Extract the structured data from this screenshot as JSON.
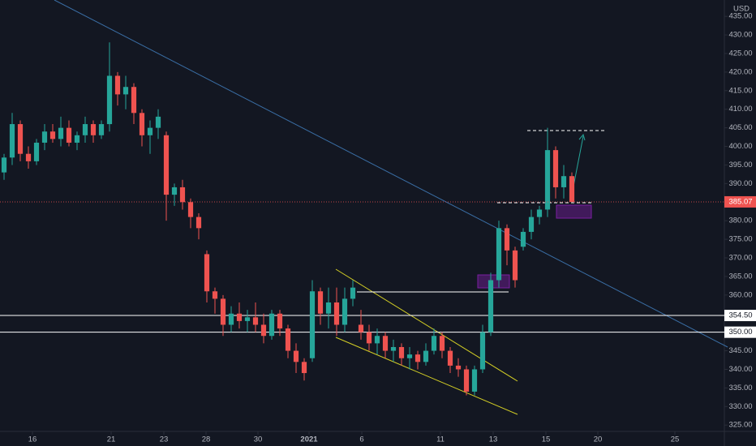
{
  "chart_data": {
    "type": "candlestick",
    "currency": "USD",
    "x": [
      0,
      1,
      2,
      3,
      4,
      5,
      6,
      7,
      8,
      9,
      10,
      11,
      12,
      13,
      14,
      15,
      16,
      17,
      18,
      19,
      20,
      21,
      22,
      23,
      24,
      25,
      26,
      27,
      28,
      29,
      30,
      31,
      32,
      33,
      34,
      35,
      36,
      37,
      38,
      39,
      40,
      41,
      42,
      43,
      44,
      45,
      46,
      47,
      48,
      49,
      50,
      51,
      52,
      53,
      54,
      55,
      56,
      57,
      58,
      59,
      60,
      61,
      62,
      63,
      64,
      65,
      66,
      67,
      68,
      69,
      70
    ],
    "open": [
      393,
      397,
      406,
      398,
      396,
      401,
      404,
      402,
      405,
      401,
      403,
      406,
      403,
      406,
      419,
      414,
      416,
      409,
      403,
      405,
      403,
      387,
      389,
      385,
      381,
      371,
      361,
      359,
      352,
      355,
      353,
      354,
      352,
      349,
      355,
      351,
      345,
      342,
      343,
      361,
      355,
      358,
      352,
      359,
      352,
      350,
      347,
      349,
      345,
      346,
      343,
      344,
      342,
      345,
      349,
      345,
      341,
      340,
      334,
      340,
      350,
      364,
      378,
      372,
      373,
      377,
      381,
      383,
      399,
      389,
      392
    ],
    "high": [
      398,
      409,
      407,
      400,
      402,
      406,
      406,
      408,
      407,
      404,
      408,
      407,
      407,
      428,
      420,
      419,
      417,
      410,
      407,
      410,
      404,
      390,
      391,
      386,
      382,
      372,
      362,
      360,
      357,
      358,
      356,
      358,
      355,
      356,
      356,
      352,
      347,
      343,
      364,
      362,
      362,
      362,
      362,
      364,
      356,
      352,
      351,
      350,
      348,
      347,
      346,
      345,
      347,
      351,
      350,
      346,
      343,
      341,
      341,
      352,
      366,
      380,
      379,
      373,
      378,
      383,
      384,
      405,
      400,
      395,
      393
    ],
    "low": [
      391,
      395,
      396,
      394,
      395,
      399,
      401,
      400,
      400,
      399,
      401,
      401,
      402,
      404,
      411,
      410,
      406,
      400,
      398,
      402,
      380,
      384,
      383,
      378,
      375,
      358,
      355,
      349,
      350,
      351,
      350,
      350,
      347,
      348,
      349,
      343,
      339,
      337,
      342,
      352,
      351,
      349,
      350,
      357,
      348,
      345,
      344,
      343,
      342,
      341,
      340,
      340,
      341,
      344,
      343,
      339,
      338,
      333,
      333,
      339,
      349,
      362,
      368,
      362,
      372,
      375,
      379,
      381,
      386,
      386,
      385
    ],
    "close": [
      397,
      406,
      398,
      396,
      401,
      404,
      402,
      405,
      401,
      403,
      406,
      403,
      406,
      419,
      414,
      416,
      409,
      403,
      405,
      408,
      387,
      389,
      385,
      381,
      378,
      361,
      359,
      352,
      355,
      353,
      354,
      352,
      349,
      355,
      351,
      345,
      342,
      339,
      361,
      355,
      358,
      352,
      359,
      362,
      350,
      347,
      349,
      345,
      346,
      343,
      344,
      342,
      345,
      349,
      345,
      341,
      340,
      334,
      340,
      350,
      364,
      378,
      372,
      364,
      377,
      381,
      383,
      399,
      389,
      392,
      385.07
    ],
    "up_color": "#26a69a",
    "down_color": "#ef5350",
    "xlim": [
      -0.5,
      88.8
    ],
    "xticks": [
      {
        "value": 3.5,
        "label": "16"
      },
      {
        "value": 13.2,
        "label": "21"
      },
      {
        "value": 19.7,
        "label": "23"
      },
      {
        "value": 24.9,
        "label": "28"
      },
      {
        "value": 31.3,
        "label": "30"
      },
      {
        "value": 37.6,
        "label": "2021"
      },
      {
        "value": 44.1,
        "label": "6"
      },
      {
        "value": 53.8,
        "label": "11"
      },
      {
        "value": 60.3,
        "label": "13"
      },
      {
        "value": 66.8,
        "label": "15"
      },
      {
        "value": 73.2,
        "label": "20"
      },
      {
        "value": 82.7,
        "label": "25"
      }
    ],
    "ylim": [
      323.3,
      439.4
    ],
    "yticks": [
      {
        "value": 325,
        "label": "325.00"
      },
      {
        "value": 330,
        "label": "330.00"
      },
      {
        "value": 335,
        "label": "335.00"
      },
      {
        "value": 340,
        "label": "340.00"
      },
      {
        "value": 345,
        "label": "345.00"
      },
      {
        "value": 350,
        "label": "350.00"
      },
      {
        "value": 355,
        "label": "355.00"
      },
      {
        "value": 360,
        "label": "360.00"
      },
      {
        "value": 365,
        "label": "365.00"
      },
      {
        "value": 370,
        "label": "370.00"
      },
      {
        "value": 375,
        "label": "375.00"
      },
      {
        "value": 380,
        "label": "380.00"
      },
      {
        "value": 385,
        "label": "385.00"
      },
      {
        "value": 390,
        "label": "390.00"
      },
      {
        "value": 395,
        "label": "395.00"
      },
      {
        "value": 400,
        "label": "400.00"
      },
      {
        "value": 405,
        "label": "405.00"
      },
      {
        "value": 410,
        "label": "410.00"
      },
      {
        "value": 415,
        "label": "415.00"
      },
      {
        "value": 420,
        "label": "420.00"
      },
      {
        "value": 425,
        "label": "425.00"
      },
      {
        "value": 430,
        "label": "430.00"
      },
      {
        "value": 435,
        "label": "435.00"
      }
    ],
    "levels": [
      {
        "value": 354.5,
        "label": "354.50"
      },
      {
        "value": 350,
        "label": "350.00"
      }
    ],
    "last_price": {
      "value": 385.07,
      "label": "385.07"
    }
  }
}
